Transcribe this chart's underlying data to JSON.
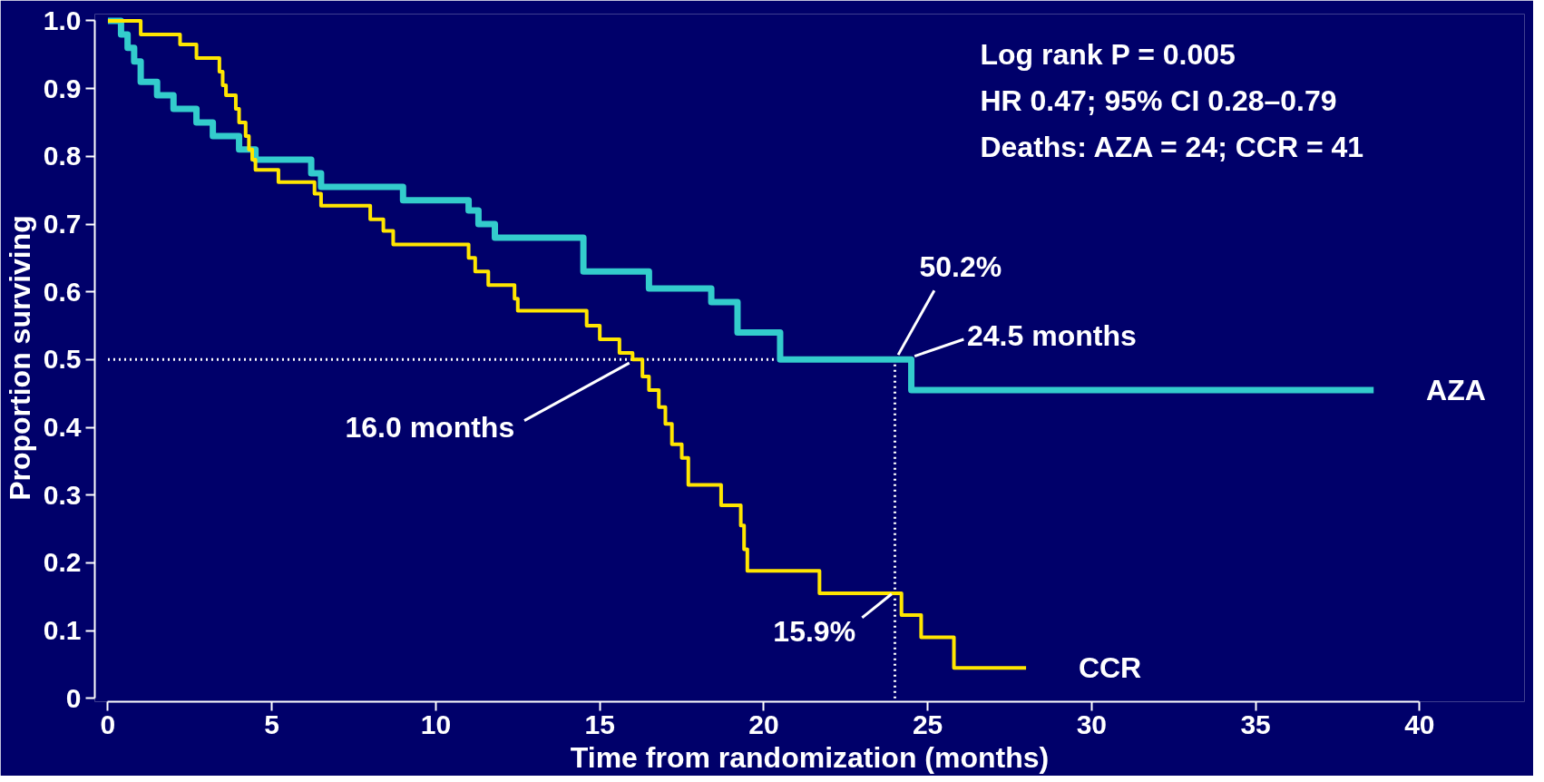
{
  "chart_data": {
    "type": "step",
    "xlabel": "Time from randomization (months)",
    "ylabel": "Proportion surviving",
    "xlim": [
      0,
      40
    ],
    "xticks": [
      0,
      5,
      10,
      15,
      20,
      25,
      30,
      35,
      40
    ],
    "ylim": [
      0,
      1.0
    ],
    "yticks": [
      {
        "value": 0,
        "label": "0"
      },
      0.1,
      0.2,
      0.3,
      0.4,
      0.5,
      0.6,
      0.7,
      0.8,
      0.9,
      {
        "value": 1.0,
        "label": "1.0"
      }
    ],
    "grid": false,
    "legend": false,
    "series": [
      {
        "name": "AZA",
        "color": "#33cccc",
        "x": [
          0,
          0.4,
          0.6,
          0.8,
          1.0,
          1.5,
          2.0,
          2.7,
          3.2,
          4.0,
          4.5,
          6.2,
          6.5,
          9.0,
          11.0,
          11.3,
          11.8,
          14.5,
          16.5,
          18.4,
          19.2,
          20.5,
          24.5,
          38.6
        ],
        "values": [
          1.0,
          0.98,
          0.96,
          0.94,
          0.91,
          0.89,
          0.87,
          0.85,
          0.83,
          0.81,
          0.795,
          0.775,
          0.755,
          0.735,
          0.72,
          0.7,
          0.68,
          0.63,
          0.605,
          0.585,
          0.54,
          0.5,
          0.455,
          0.455
        ]
      },
      {
        "name": "CCR",
        "color": "#ffe600",
        "x": [
          0,
          1.0,
          2.2,
          2.7,
          3.4,
          3.5,
          3.6,
          3.9,
          4.0,
          4.2,
          4.3,
          4.4,
          4.5,
          4.6,
          5.2,
          6.3,
          6.5,
          8.0,
          8.4,
          8.7,
          11.0,
          11.2,
          11.6,
          12.4,
          12.5,
          14.6,
          15.0,
          15.6,
          16.0,
          16.3,
          16.5,
          16.8,
          17.0,
          17.2,
          17.5,
          17.7,
          18.7,
          19.3,
          19.4,
          19.5,
          21.7,
          24.2,
          24.8,
          25.8,
          28.0
        ],
        "values": [
          1.0,
          0.98,
          0.965,
          0.945,
          0.925,
          0.905,
          0.89,
          0.87,
          0.85,
          0.83,
          0.81,
          0.795,
          0.78,
          0.78,
          0.762,
          0.745,
          0.727,
          0.707,
          0.69,
          0.67,
          0.65,
          0.63,
          0.61,
          0.59,
          0.572,
          0.55,
          0.53,
          0.51,
          0.5,
          0.475,
          0.455,
          0.43,
          0.405,
          0.375,
          0.355,
          0.315,
          0.285,
          0.255,
          0.22,
          0.188,
          0.155,
          0.123,
          0.09,
          0.045,
          0.045
        ]
      }
    ],
    "ref_lines": [
      {
        "axis": "y",
        "value": 0.5,
        "label": null,
        "color": "#ffffff",
        "line_style": "dotted"
      },
      {
        "axis": "x",
        "value": 24.0,
        "label": null,
        "color": "#ffffff",
        "line_style": "dotted"
      }
    ],
    "annotations": [
      "Log rank P = 0.005\nHR 0.47; 95% CI 0.28–0.79\nDeaths: AZA = 24; CCR = 41",
      {
        "text": "50.2%",
        "x": 24.0,
        "y": 0.502
      },
      {
        "text": "24.5 months",
        "x": 24.5,
        "y": 0.5
      },
      {
        "text": "16.0 months",
        "x": 16.0,
        "y": 0.5
      },
      {
        "text": "15.9%",
        "x": 24.0,
        "y": 0.159
      }
    ]
  }
}
